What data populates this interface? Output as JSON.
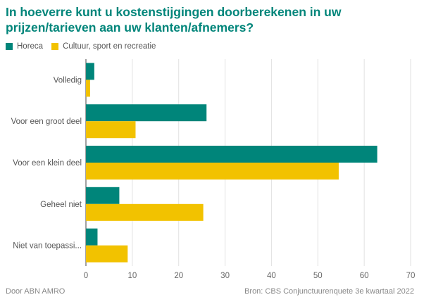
{
  "title": "In hoeverre kunt u kostenstijgingen doorberekenen in uw prijzen/tarieven aan uw klanten/afnemers?",
  "legend": [
    {
      "name": "Horeca",
      "color": "#00857a"
    },
    {
      "name": "Cultuur, sport en recreatie",
      "color": "#f2c200"
    }
  ],
  "footer": {
    "left": "Door ABN AMRO",
    "right": "Bron: CBS Conjunctuurenquete 3e kwartaal 2022"
  },
  "chart_data": {
    "type": "bar",
    "orientation": "horizontal",
    "categories": [
      "Volledig",
      "Voor een groot deel",
      "Voor een klein deel",
      "Geheel niet",
      "Niet van toepassi..."
    ],
    "series": [
      {
        "name": "Horeca",
        "color": "#00857a",
        "values": [
          1.8,
          26.0,
          62.8,
          7.2,
          2.5
        ]
      },
      {
        "name": "Cultuur, sport en recreatie",
        "color": "#f2c200",
        "values": [
          0.9,
          10.7,
          54.5,
          25.3,
          9.0
        ]
      }
    ],
    "xlim": [
      0,
      70
    ],
    "xticks": [
      0,
      10,
      20,
      30,
      40,
      50,
      60,
      70
    ],
    "grid": true
  }
}
